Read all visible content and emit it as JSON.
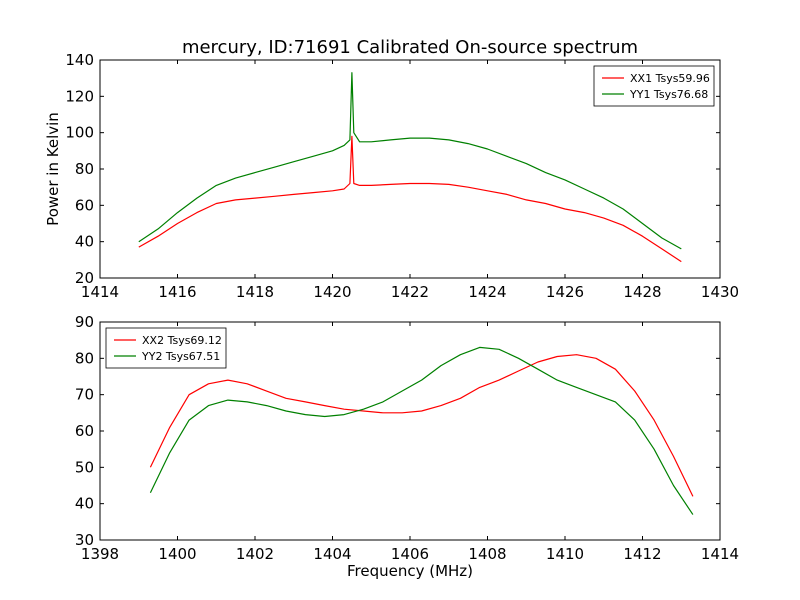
{
  "figure": {
    "title": "mercury, ID:71691 Calibrated On-source spectrum",
    "xlabel": "Frequency (MHz)"
  },
  "chart_data": [
    {
      "type": "line",
      "ylabel": "Power in Kelvin",
      "xlim": [
        1414,
        1430
      ],
      "ylim": [
        20,
        140
      ],
      "xticks": [
        1414,
        1416,
        1418,
        1420,
        1422,
        1424,
        1426,
        1428,
        1430
      ],
      "yticks": [
        20,
        40,
        60,
        80,
        100,
        120,
        140
      ],
      "legend_position": "top-right",
      "series": [
        {
          "name": "XX1 Tsys59.96",
          "color": "#ff0000",
          "points": [
            [
              1415.0,
              37
            ],
            [
              1415.5,
              43
            ],
            [
              1416.0,
              50
            ],
            [
              1416.5,
              56
            ],
            [
              1417.0,
              61
            ],
            [
              1417.5,
              63
            ],
            [
              1418.0,
              64
            ],
            [
              1418.5,
              65
            ],
            [
              1419.0,
              66
            ],
            [
              1419.5,
              67
            ],
            [
              1420.0,
              68
            ],
            [
              1420.3,
              69
            ],
            [
              1420.45,
              72
            ],
            [
              1420.5,
              98
            ],
            [
              1420.55,
              72
            ],
            [
              1420.7,
              71
            ],
            [
              1421.0,
              71
            ],
            [
              1421.5,
              71.5
            ],
            [
              1422.0,
              72
            ],
            [
              1422.5,
              72
            ],
            [
              1423.0,
              71.5
            ],
            [
              1423.5,
              70
            ],
            [
              1424.0,
              68
            ],
            [
              1424.5,
              66
            ],
            [
              1425.0,
              63
            ],
            [
              1425.5,
              61
            ],
            [
              1426.0,
              58
            ],
            [
              1426.5,
              56
            ],
            [
              1427.0,
              53
            ],
            [
              1427.5,
              49
            ],
            [
              1428.0,
              43
            ],
            [
              1428.5,
              36
            ],
            [
              1429.0,
              29
            ]
          ]
        },
        {
          "name": "YY1 Tsys76.68",
          "color": "#008000",
          "points": [
            [
              1415.0,
              40
            ],
            [
              1415.5,
              47
            ],
            [
              1416.0,
              56
            ],
            [
              1416.5,
              64
            ],
            [
              1417.0,
              71
            ],
            [
              1417.5,
              75
            ],
            [
              1418.0,
              78
            ],
            [
              1418.5,
              81
            ],
            [
              1419.0,
              84
            ],
            [
              1419.5,
              87
            ],
            [
              1420.0,
              90
            ],
            [
              1420.3,
              93
            ],
            [
              1420.45,
              96
            ],
            [
              1420.5,
              133
            ],
            [
              1420.55,
              100
            ],
            [
              1420.7,
              95
            ],
            [
              1421.0,
              95
            ],
            [
              1421.5,
              96
            ],
            [
              1422.0,
              97
            ],
            [
              1422.5,
              97
            ],
            [
              1423.0,
              96
            ],
            [
              1423.5,
              94
            ],
            [
              1424.0,
              91
            ],
            [
              1424.5,
              87
            ],
            [
              1425.0,
              83
            ],
            [
              1425.5,
              78
            ],
            [
              1426.0,
              74
            ],
            [
              1426.5,
              69
            ],
            [
              1427.0,
              64
            ],
            [
              1427.5,
              58
            ],
            [
              1428.0,
              50
            ],
            [
              1428.5,
              42
            ],
            [
              1429.0,
              36
            ]
          ]
        }
      ]
    },
    {
      "type": "line",
      "ylabel": "",
      "xlim": [
        1398,
        1414
      ],
      "ylim": [
        30,
        90
      ],
      "xticks": [
        1398,
        1400,
        1402,
        1404,
        1406,
        1408,
        1410,
        1412,
        1414
      ],
      "yticks": [
        30,
        40,
        50,
        60,
        70,
        80,
        90
      ],
      "legend_position": "top-left",
      "series": [
        {
          "name": "XX2 Tsys69.12",
          "color": "#ff0000",
          "points": [
            [
              1399.3,
              50
            ],
            [
              1399.8,
              61
            ],
            [
              1400.3,
              70
            ],
            [
              1400.8,
              73
            ],
            [
              1401.3,
              74
            ],
            [
              1401.8,
              73
            ],
            [
              1402.3,
              71
            ],
            [
              1402.8,
              69
            ],
            [
              1403.3,
              68
            ],
            [
              1403.8,
              67
            ],
            [
              1404.3,
              66
            ],
            [
              1404.8,
              65.5
            ],
            [
              1405.3,
              65
            ],
            [
              1405.8,
              65
            ],
            [
              1406.3,
              65.5
            ],
            [
              1406.8,
              67
            ],
            [
              1407.3,
              69
            ],
            [
              1407.8,
              72
            ],
            [
              1408.3,
              74
            ],
            [
              1408.8,
              76.5
            ],
            [
              1409.3,
              79
            ],
            [
              1409.8,
              80.5
            ],
            [
              1410.3,
              81
            ],
            [
              1410.8,
              80
            ],
            [
              1411.3,
              77
            ],
            [
              1411.8,
              71
            ],
            [
              1412.3,
              63
            ],
            [
              1412.8,
              53
            ],
            [
              1413.3,
              42
            ]
          ]
        },
        {
          "name": "YY2 Tsys67.51",
          "color": "#008000",
          "points": [
            [
              1399.3,
              43
            ],
            [
              1399.8,
              54
            ],
            [
              1400.3,
              63
            ],
            [
              1400.8,
              67
            ],
            [
              1401.3,
              68.5
            ],
            [
              1401.8,
              68
            ],
            [
              1402.3,
              67
            ],
            [
              1402.8,
              65.5
            ],
            [
              1403.3,
              64.5
            ],
            [
              1403.8,
              64
            ],
            [
              1404.3,
              64.5
            ],
            [
              1404.8,
              66
            ],
            [
              1405.3,
              68
            ],
            [
              1405.8,
              71
            ],
            [
              1406.3,
              74
            ],
            [
              1406.8,
              78
            ],
            [
              1407.3,
              81
            ],
            [
              1407.8,
              83
            ],
            [
              1408.3,
              82.5
            ],
            [
              1408.8,
              80
            ],
            [
              1409.3,
              77
            ],
            [
              1409.8,
              74
            ],
            [
              1410.3,
              72
            ],
            [
              1410.8,
              70
            ],
            [
              1411.3,
              68
            ],
            [
              1411.8,
              63
            ],
            [
              1412.3,
              55
            ],
            [
              1412.8,
              45
            ],
            [
              1413.3,
              37
            ]
          ]
        }
      ]
    }
  ]
}
